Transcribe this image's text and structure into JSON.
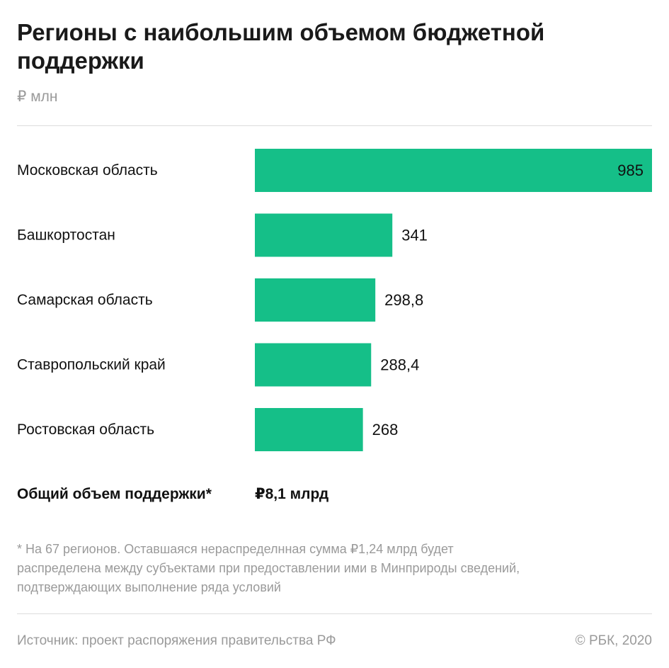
{
  "header": {
    "title": "Регионы с наибольшим объемом бюджетной поддержки",
    "subtitle": "₽ млн"
  },
  "chart_data": {
    "type": "bar",
    "orientation": "horizontal",
    "categories": [
      "Московская область",
      "Башкортостан",
      "Самарская область",
      "Ставропольский край",
      "Ростовская область"
    ],
    "values": [
      985,
      341,
      298.8,
      288.4,
      268
    ],
    "value_labels": [
      "985",
      "341",
      "298,8",
      "288,4",
      "268"
    ],
    "xlim": [
      0,
      985
    ],
    "unit": "₽ млн",
    "bar_color": "#15bf88",
    "grid": false,
    "legend": "none"
  },
  "total": {
    "label": "Общий объем поддержки*",
    "value": "₽8,1 млрд"
  },
  "footnote": {
    "lines": [
      "* На 67 регионов. Оставшаяся нераспределнная сумма ₽1,24 млрд будет",
      "распределена между субъектами при предоставлении ими в Минприроды сведений,",
      "подтверждающих выполнение ряда условий"
    ]
  },
  "footer": {
    "source": "Источник: проект распоряжения правительства РФ",
    "copyright": "© РБК, 2020"
  }
}
